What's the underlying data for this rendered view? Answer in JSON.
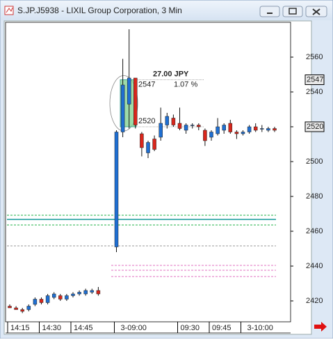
{
  "chart_data": {
    "type": "candlestick",
    "title": "S.JP.J5938 - LIXIL Group Corporation, 3 Min",
    "categories": [
      "14:15",
      null,
      null,
      null,
      null,
      "14:30",
      null,
      null,
      null,
      null,
      "14:45",
      null,
      null,
      null,
      null,
      "3-09:00",
      null,
      null,
      null,
      null,
      null,
      null,
      null,
      null,
      null,
      "09:30",
      null,
      null,
      null,
      null,
      "09:45",
      null,
      null,
      null,
      null,
      "3-10:00",
      null,
      null,
      null,
      null,
      null
    ],
    "open": [
      2417,
      2416,
      2415,
      2415,
      2418,
      2421,
      2419,
      2422,
      2423,
      2421,
      2423,
      2424,
      2424,
      2425,
      2426,
      2451,
      2517,
      2533,
      2548,
      2516,
      2505,
      2513,
      2514,
      2521,
      2525,
      2522,
      2518,
      2521,
      2521,
      2518,
      2514,
      2516,
      2518,
      2522,
      2517,
      2516,
      2517,
      2520,
      2519,
      2518,
      2519
    ],
    "high": [
      2418,
      2417,
      2416,
      2418,
      2422,
      2422,
      2424,
      2425,
      2424,
      2424,
      2425,
      2426,
      2427,
      2427,
      2428,
      2518,
      2559,
      2576,
      2548,
      2517,
      2512,
      2515,
      2531,
      2528,
      2527,
      2531,
      2522,
      2522,
      2522,
      2519,
      2518,
      2525,
      2522,
      2524,
      2518,
      2518,
      2521,
      2522,
      2521,
      2520,
      2520
    ],
    "low": [
      2416,
      2415,
      2413,
      2414,
      2417,
      2418,
      2418,
      2421,
      2420,
      2420,
      2422,
      2423,
      2423,
      2424,
      2423,
      2448,
      2514,
      2519,
      2519,
      2503,
      2502,
      2506,
      2512,
      2519,
      2520,
      2518,
      2516,
      2519,
      2518,
      2509,
      2512,
      2515,
      2516,
      2516,
      2513,
      2515,
      2516,
      2517,
      2517,
      2517,
      2517
    ],
    "close": [
      2416,
      2415,
      2414,
      2417,
      2421,
      2419,
      2423,
      2424,
      2421,
      2423,
      2424,
      2425,
      2426,
      2426,
      2424,
      2517,
      2544,
      2548,
      2521,
      2508,
      2511,
      2507,
      2522,
      2526,
      2521,
      2519,
      2521,
      2521,
      2520,
      2512,
      2517,
      2520,
      2521,
      2517,
      2516,
      2517,
      2520,
      2518,
      2519,
      2519,
      2518
    ],
    "up_color": "#1f6fd2",
    "down_color": "#d9261c",
    "ylim": [
      2408,
      2580
    ],
    "yticks": [
      2420,
      2440,
      2460,
      2480,
      2500,
      2520,
      2540,
      2560
    ],
    "hlines": [
      {
        "value": 2469.2,
        "color": "#22b04a",
        "dash": true
      },
      {
        "value": 2466.8,
        "color": "#159a9a",
        "dash": false
      },
      {
        "value": 2463.6,
        "color": "#22b04a",
        "dash": true
      },
      {
        "value": 2451.6,
        "color": "#999999",
        "dash": true
      },
      {
        "value": 2440.4,
        "color": "#e070c0",
        "dash": true
      },
      {
        "value": 2437.6,
        "color": "#e070c0",
        "dash": true
      },
      {
        "value": 2434,
        "color": "#e070c0",
        "dash": true
      }
    ],
    "measure": {
      "high": 2547,
      "low": 2520,
      "change_label": "27.00 JPY",
      "percent_label": "1.07 %"
    },
    "price_markers": [
      2547,
      2520
    ]
  }
}
